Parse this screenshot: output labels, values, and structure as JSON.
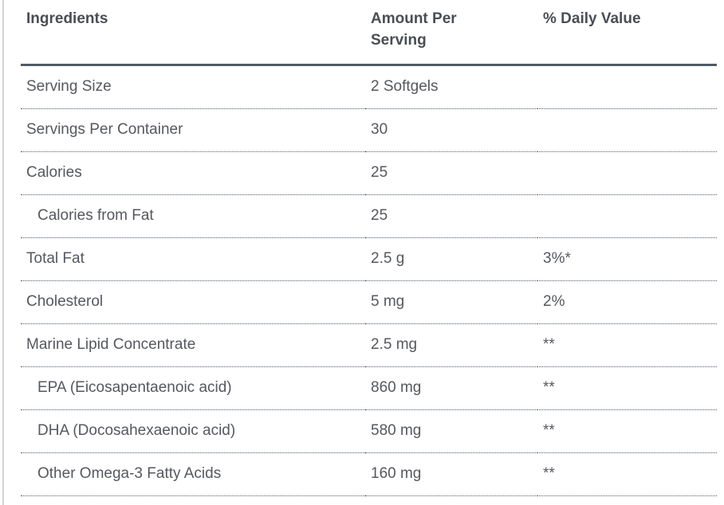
{
  "table": {
    "headers": {
      "ingredients": "Ingredients",
      "amount_per_serving": "Amount Per Serving",
      "daily_value": "% Daily Value"
    },
    "rows": [
      {
        "label": "Serving Size",
        "amount": "2 Softgels",
        "daily_value": "",
        "indent": false
      },
      {
        "label": "Servings Per Container",
        "amount": "30",
        "daily_value": "",
        "indent": false
      },
      {
        "label": "Calories",
        "amount": "25",
        "daily_value": "",
        "indent": false
      },
      {
        "label": "Calories from Fat",
        "amount": "25",
        "daily_value": "",
        "indent": true
      },
      {
        "label": "Total Fat",
        "amount": "2.5 g",
        "daily_value": "3%*",
        "indent": false
      },
      {
        "label": "Cholesterol",
        "amount": "5 mg",
        "daily_value": "2%",
        "indent": false
      },
      {
        "label": "Marine Lipid Concentrate",
        "amount": "2.5 mg",
        "daily_value": "**",
        "indent": false
      },
      {
        "label": "EPA (Eicosapentaenoic acid)",
        "amount": "860 mg",
        "daily_value": "**",
        "indent": true
      },
      {
        "label": "DHA (Docosahexaenoic acid)",
        "amount": "580 mg",
        "daily_value": "**",
        "indent": true
      },
      {
        "label": "Other Omega-3 Fatty Acids",
        "amount": "160 mg",
        "daily_value": "**",
        "indent": true
      }
    ],
    "colors": {
      "header_text": "#4a4e53",
      "body_text": "#55585d",
      "header_rule": "#4d5c68",
      "row_rule": "#4e5b66",
      "left_rule": "#d3d5d7",
      "background": "#ffffff"
    }
  }
}
